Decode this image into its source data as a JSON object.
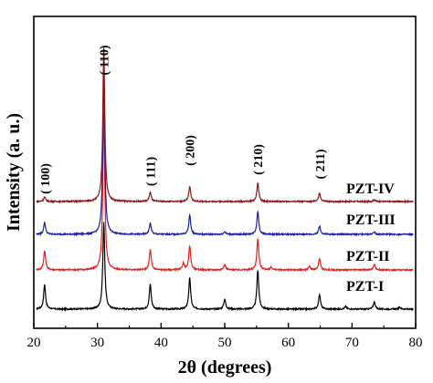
{
  "chart_data": {
    "type": "line",
    "xlabel": "2θ (degrees)",
    "ylabel": "Intensity (a. u.)",
    "xlim": [
      20,
      80
    ],
    "xticks": [
      20,
      30,
      40,
      50,
      60,
      70,
      80
    ],
    "yticks": [],
    "grid": false,
    "legend": "inline series labels at right",
    "peak_labels": [
      {
        "text": "( 100)",
        "x": 21.7
      },
      {
        "text": "( 110)",
        "x": 31.0
      },
      {
        "text": "( 111)",
        "x": 38.3
      },
      {
        "text": "( 200)",
        "x": 44.5
      },
      {
        "text": "( 210)",
        "x": 55.2
      },
      {
        "text": "( 211)",
        "x": 64.9
      }
    ],
    "series": [
      {
        "name": "PZT-I",
        "color": "#000000",
        "baseline": 0,
        "peaks": [
          [
            21.7,
            27
          ],
          [
            31.0,
            95
          ],
          [
            38.3,
            27
          ],
          [
            44.5,
            34
          ],
          [
            50.0,
            11
          ],
          [
            55.2,
            43
          ],
          [
            64.9,
            16
          ],
          [
            69.0,
            3
          ],
          [
            73.5,
            8
          ],
          [
            77.5,
            2
          ]
        ]
      },
      {
        "name": "PZT-II",
        "color": "#e8201c",
        "baseline": 43,
        "peaks": [
          [
            21.7,
            21
          ],
          [
            31.0,
            175
          ],
          [
            38.3,
            22
          ],
          [
            43.5,
            7
          ],
          [
            44.5,
            26
          ],
          [
            50.0,
            6
          ],
          [
            55.2,
            34
          ],
          [
            57.3,
            3
          ],
          [
            63.3,
            4
          ],
          [
            64.9,
            12
          ],
          [
            73.5,
            6
          ]
        ]
      },
      {
        "name": "PZT-III",
        "color": "#1f1fa0",
        "baseline": 82,
        "peaks": [
          [
            21.7,
            13
          ],
          [
            31.0,
            175
          ],
          [
            38.3,
            12
          ],
          [
            44.5,
            21
          ],
          [
            50.0,
            3
          ],
          [
            55.2,
            25
          ],
          [
            64.9,
            9
          ],
          [
            73.5,
            3
          ]
        ]
      },
      {
        "name": "PZT-IV",
        "color": "#8b1a1a",
        "baseline": 118,
        "peaks": [
          [
            21.7,
            5
          ],
          [
            31.0,
            170
          ],
          [
            38.3,
            10
          ],
          [
            44.5,
            16
          ],
          [
            55.2,
            20
          ],
          [
            64.9,
            9
          ],
          [
            73.5,
            2
          ]
        ]
      }
    ]
  }
}
